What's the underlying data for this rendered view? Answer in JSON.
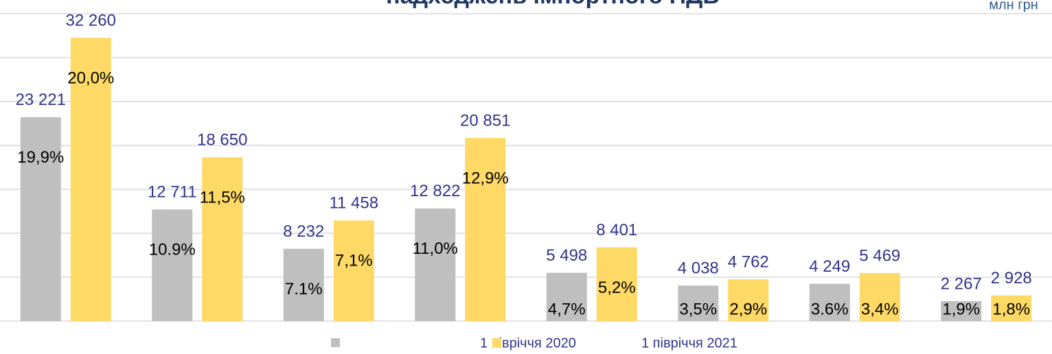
{
  "chart_data": {
    "type": "bar",
    "title": "надходжень імпортного ПДВ",
    "unit": "млн грн",
    "categories": [
      null,
      null,
      null,
      null,
      null,
      null,
      null,
      null
    ],
    "series": [
      {
        "name": "1 півріччя 2020",
        "color": "#bfbfbf",
        "values": [
          23221,
          12711,
          8232,
          12822,
          5498,
          4038,
          4249,
          2267
        ],
        "value_labels": [
          "23 221",
          "12 711",
          "8 232",
          "12 822",
          "5 498",
          "4 038",
          "4 249",
          "2 267"
        ],
        "shares": [
          19.9,
          10.9,
          7.1,
          11.0,
          4.7,
          3.5,
          3.6,
          1.9
        ],
        "share_labels": [
          "19,9%",
          "10.9%",
          "7.1%",
          "11,0%",
          "4,7%",
          "3,5%",
          "3.6%",
          "1,9%"
        ]
      },
      {
        "name": "1 півріччя 2021",
        "color": "#ffd966",
        "values": [
          32260,
          18650,
          11458,
          20851,
          8401,
          4762,
          5469,
          2928
        ],
        "value_labels": [
          "32 260",
          "18 650",
          "11 458",
          "20 851",
          "8 401",
          "4 762",
          "5 469",
          "2 928"
        ],
        "shares": [
          20.0,
          11.5,
          7.1,
          12.9,
          5.2,
          2.9,
          3.4,
          1.8
        ],
        "share_labels": [
          "20,0%",
          "11,5%",
          "7,1%",
          "12,9%",
          "5,2%",
          "2,9%",
          "3,4%",
          "1,8%"
        ]
      }
    ],
    "ylim": [
      0,
      35000
    ],
    "yticks": [
      0,
      5000,
      10000,
      15000,
      20000,
      25000,
      30000,
      35000
    ],
    "grid": true
  }
}
